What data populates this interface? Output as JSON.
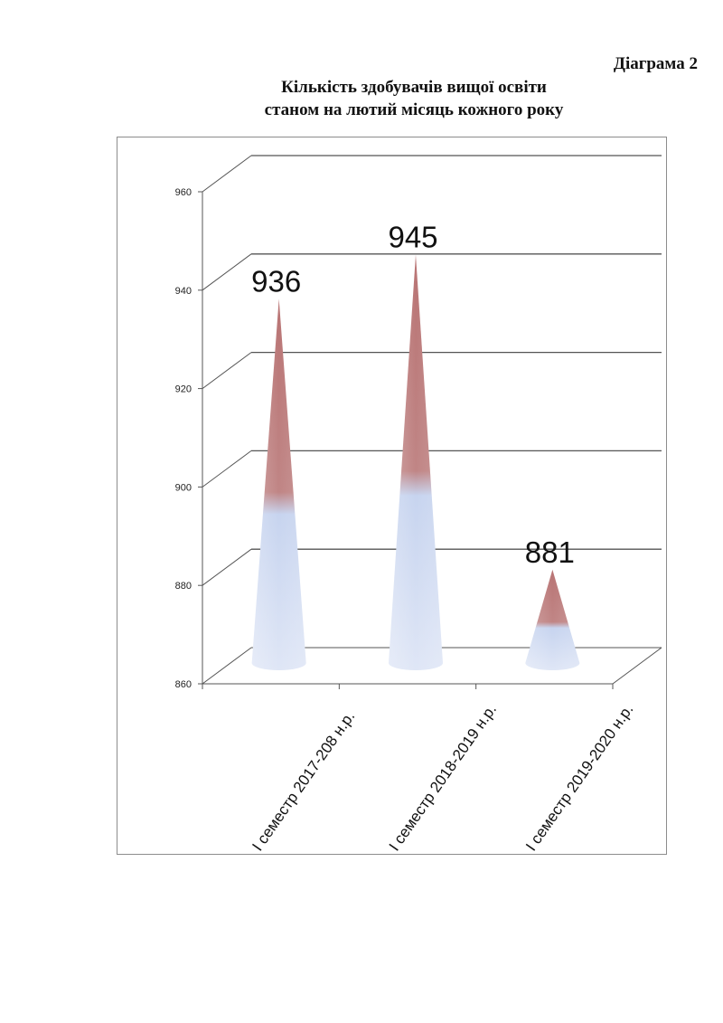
{
  "page": {
    "diagram_label": "Діаграма 2",
    "title_line1": "Кількість здобувачів вищої освіти",
    "title_line2": "станом на лютий місяць кожного року"
  },
  "chart_data": {
    "type": "bar",
    "shape": "cone-3d",
    "title": "Кількість здобувачів вищої освіти станом на лютий місяць кожного року",
    "categories": [
      "I семестр 2017-208 н.р.",
      "I семестр 2018-2019 н.р.",
      "I семестр 2019-2020 н.р."
    ],
    "values": [
      936,
      945,
      881
    ],
    "data_labels": [
      "936",
      "945",
      "881"
    ],
    "ylim": [
      860,
      960
    ],
    "yticks": [
      860,
      880,
      900,
      920,
      940,
      960
    ],
    "grid": true,
    "colors": {
      "top": "#b97474",
      "bottom": "#c7d4ef",
      "grid": "#555555"
    }
  }
}
